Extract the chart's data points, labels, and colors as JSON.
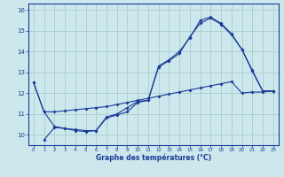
{
  "xlabel": "Graphe des températures (°C)",
  "bg_color": "#cce8ec",
  "grid_color": "#aacccc",
  "line_color": "#1a3a9a",
  "xlim": [
    -0.5,
    23.5
  ],
  "ylim": [
    9.5,
    16.3
  ],
  "xticks": [
    0,
    1,
    2,
    3,
    4,
    5,
    6,
    7,
    8,
    9,
    10,
    11,
    12,
    13,
    14,
    15,
    16,
    17,
    18,
    19,
    20,
    21,
    22,
    23
  ],
  "yticks": [
    10,
    11,
    12,
    13,
    14,
    15,
    16
  ],
  "series1": {
    "x": [
      0,
      1,
      2,
      3,
      4,
      5,
      6,
      7,
      8,
      9,
      10,
      11,
      12,
      13,
      14,
      15,
      16,
      17,
      18,
      19,
      20,
      21,
      22,
      23
    ],
    "y": [
      12.5,
      11.1,
      11.1,
      11.15,
      11.2,
      11.25,
      11.3,
      11.35,
      11.45,
      11.55,
      11.65,
      11.75,
      11.85,
      11.95,
      12.05,
      12.15,
      12.25,
      12.35,
      12.45,
      12.55,
      12.0,
      12.05,
      12.05,
      12.1
    ]
  },
  "series2": {
    "x": [
      0,
      1,
      2,
      3,
      4,
      5,
      6,
      7,
      8,
      9,
      10,
      11,
      12,
      13,
      14,
      15,
      16,
      17,
      18,
      19,
      20,
      21,
      22,
      23
    ],
    "y": [
      12.5,
      11.1,
      10.4,
      10.3,
      10.25,
      10.2,
      10.2,
      10.8,
      10.95,
      11.1,
      11.55,
      11.65,
      13.25,
      13.55,
      13.9,
      14.7,
      15.35,
      15.6,
      15.3,
      14.8,
      14.1,
      13.05,
      12.1,
      12.1
    ]
  },
  "series3": {
    "x": [
      1,
      2,
      3,
      4,
      5,
      6,
      7,
      8,
      9,
      10,
      11,
      12,
      13,
      14,
      15,
      16,
      17,
      18,
      19,
      20,
      21,
      22,
      23
    ],
    "y": [
      9.75,
      10.35,
      10.3,
      10.2,
      10.15,
      10.2,
      10.85,
      11.0,
      11.3,
      11.6,
      11.65,
      13.3,
      13.6,
      14.0,
      14.65,
      15.5,
      15.65,
      15.35,
      14.85,
      14.1,
      13.1,
      12.1,
      12.1
    ]
  }
}
